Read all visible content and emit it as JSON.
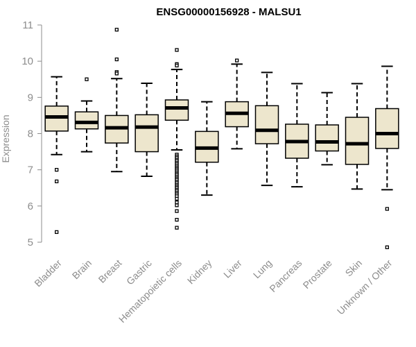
{
  "chart_data": {
    "type": "boxplot",
    "title": "ENSG00000156928 - MALSU1",
    "xlabel": "",
    "ylabel": "Expression",
    "ylim": [
      4.7,
      11.05
    ],
    "yticks": [
      5,
      6,
      7,
      8,
      9,
      10,
      11
    ],
    "box_fill": "#ede6cd",
    "categories": [
      "Bladder",
      "Brain",
      "Breast",
      "Gastric",
      "Hematopoietic cells",
      "Kidney",
      "Liver",
      "Lung",
      "Pancreas",
      "Prostate",
      "Skin",
      "Unknown / Other"
    ],
    "boxes": [
      {
        "lower_whisker": 7.42,
        "q1": 8.07,
        "median": 8.46,
        "q3": 8.76,
        "upper_whisker": 9.57,
        "outliers": [
          7.0,
          6.68,
          5.28
        ]
      },
      {
        "lower_whisker": 7.5,
        "q1": 8.13,
        "median": 8.31,
        "q3": 8.6,
        "upper_whisker": 8.9,
        "outliers": [
          9.5
        ]
      },
      {
        "lower_whisker": 6.95,
        "q1": 7.74,
        "median": 8.16,
        "q3": 8.5,
        "upper_whisker": 9.52,
        "outliers": [
          10.87,
          10.05,
          9.7,
          9.66
        ]
      },
      {
        "lower_whisker": 6.82,
        "q1": 7.5,
        "median": 8.18,
        "q3": 8.52,
        "upper_whisker": 9.39,
        "outliers": []
      },
      {
        "lower_whisker": 7.55,
        "q1": 8.37,
        "median": 8.71,
        "q3": 8.93,
        "upper_whisker": 9.77,
        "outliers": [
          10.31,
          9.92,
          9.88,
          7.42,
          7.37,
          7.33,
          7.28,
          7.24,
          7.19,
          7.15,
          7.1,
          7.06,
          7.02,
          6.98,
          6.93,
          6.89,
          6.85,
          6.8,
          6.76,
          6.72,
          6.67,
          6.63,
          6.58,
          6.54,
          6.5,
          6.45,
          6.41,
          6.36,
          6.32,
          6.27,
          6.2,
          6.1,
          6.02,
          5.86,
          5.62,
          5.4
        ]
      },
      {
        "lower_whisker": 6.3,
        "q1": 7.21,
        "median": 7.6,
        "q3": 8.06,
        "upper_whisker": 8.88,
        "outliers": []
      },
      {
        "lower_whisker": 7.58,
        "q1": 8.19,
        "median": 8.56,
        "q3": 8.88,
        "upper_whisker": 9.92,
        "outliers": [
          10.02
        ]
      },
      {
        "lower_whisker": 6.57,
        "q1": 7.72,
        "median": 8.09,
        "q3": 8.77,
        "upper_whisker": 9.69,
        "outliers": []
      },
      {
        "lower_whisker": 6.53,
        "q1": 7.32,
        "median": 7.78,
        "q3": 8.26,
        "upper_whisker": 9.38,
        "outliers": []
      },
      {
        "lower_whisker": 7.14,
        "q1": 7.52,
        "median": 7.77,
        "q3": 8.24,
        "upper_whisker": 9.13,
        "outliers": []
      },
      {
        "lower_whisker": 6.47,
        "q1": 7.15,
        "median": 7.72,
        "q3": 8.45,
        "upper_whisker": 9.38,
        "outliers": []
      },
      {
        "lower_whisker": 6.45,
        "q1": 7.59,
        "median": 8.0,
        "q3": 8.69,
        "upper_whisker": 9.86,
        "outliers": [
          5.92,
          4.86
        ]
      }
    ]
  }
}
